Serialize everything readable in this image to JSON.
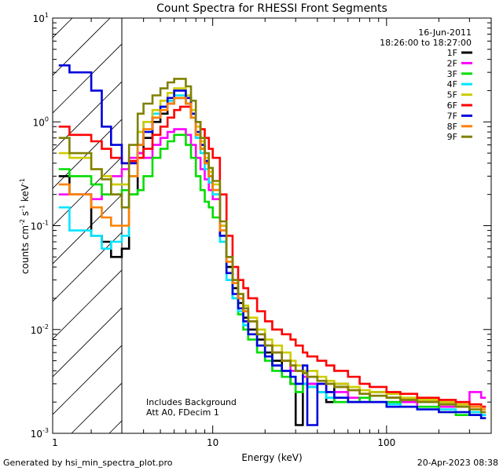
{
  "chart_data": {
    "type": "line",
    "title": "Count Spectra for RHESSI Front Segments",
    "xlabel": "Energy (keV)",
    "ylabel_main": "counts cm",
    "ylabel_sup1": "-2",
    "ylabel_mid1": " s",
    "ylabel_sup2": "-1",
    "ylabel_mid2": " keV",
    "ylabel_sup3": "-1",
    "x_scale": "log",
    "y_scale": "log",
    "xlim": [
      1.2,
      400
    ],
    "ylim": [
      0.001,
      10
    ],
    "x_tick_values": [
      10,
      100
    ],
    "x_tick_labels": [
      "10",
      "100"
    ],
    "y_ticks": [
      {
        "value": 0.001,
        "base": "10",
        "exp": "-3"
      },
      {
        "value": 0.01,
        "base": "10",
        "exp": "-2"
      },
      {
        "value": 0.1,
        "base": "10",
        "exp": "-1"
      },
      {
        "value": 1,
        "base": "10",
        "exp": "0"
      },
      {
        "value": 10,
        "base": "10",
        "exp": "1"
      }
    ],
    "x_one_label": "1",
    "date": "16-Jun-2011",
    "time_range": "18:26:00 to 18:27:00",
    "annotation1": "Includes Background",
    "annotation2": "Att A0, FDecim 1",
    "hatched_below_keV": 3,
    "series": [
      {
        "name": "1F",
        "color": "#000000",
        "x": [
          1.3,
          1.5,
          2.0,
          2.3,
          2.6,
          3.0,
          3.3,
          3.7,
          4.0,
          4.5,
          5.0,
          5.5,
          6.0,
          6.5,
          7.0,
          7.5,
          8.0,
          8.5,
          9.0,
          9.5,
          10,
          11,
          12,
          13,
          14,
          15,
          16,
          18,
          20,
          22,
          25,
          28,
          30,
          33,
          35,
          40,
          45,
          50,
          60,
          70,
          80,
          100,
          120,
          150,
          200,
          250,
          300,
          350
        ],
        "y": [
          0.3,
          0.2,
          0.08,
          0.07,
          0.05,
          0.06,
          0.2,
          0.5,
          0.7,
          1.0,
          1.2,
          1.5,
          1.7,
          1.7,
          1.5,
          1.1,
          0.7,
          0.55,
          0.4,
          0.3,
          0.2,
          0.08,
          0.04,
          0.025,
          0.018,
          0.013,
          0.01,
          0.008,
          0.006,
          0.005,
          0.004,
          0.003,
          0.0012,
          0.003,
          0.003,
          0.0025,
          0.002,
          0.003,
          0.002,
          0.002,
          0.0025,
          0.0022,
          0.002,
          0.002,
          0.0018,
          0.0018,
          0.0015,
          0.0015
        ]
      },
      {
        "name": "2F",
        "color": "#ff00ff",
        "x": [
          1.3,
          1.5,
          2.0,
          2.3,
          2.6,
          3.0,
          3.3,
          3.7,
          4.0,
          4.5,
          5.0,
          5.5,
          6.0,
          6.5,
          7.0,
          7.5,
          8.0,
          8.5,
          9.0,
          9.5,
          10,
          11,
          12,
          13,
          14,
          15,
          16,
          18,
          20,
          22,
          25,
          28,
          30,
          33,
          35,
          40,
          45,
          50,
          60,
          70,
          80,
          100,
          120,
          150,
          200,
          250,
          300,
          350
        ],
        "y": [
          0.2,
          0.2,
          0.18,
          0.2,
          0.3,
          0.35,
          0.45,
          0.5,
          0.45,
          0.6,
          0.7,
          0.8,
          0.85,
          0.85,
          0.75,
          0.6,
          0.45,
          0.35,
          0.28,
          0.22,
          0.18,
          0.1,
          0.05,
          0.03,
          0.02,
          0.015,
          0.012,
          0.009,
          0.007,
          0.006,
          0.005,
          0.004,
          0.004,
          0.0035,
          0.003,
          0.003,
          0.0025,
          0.0025,
          0.0022,
          0.002,
          0.002,
          0.002,
          0.002,
          0.0018,
          0.0018,
          0.002,
          0.0025,
          0.0022
        ]
      },
      {
        "name": "3F",
        "color": "#00dd00",
        "x": [
          1.3,
          1.5,
          2.0,
          2.3,
          2.6,
          3.0,
          3.3,
          3.7,
          4.0,
          4.5,
          5.0,
          5.5,
          6.0,
          6.5,
          7.0,
          7.5,
          8.0,
          8.5,
          9.0,
          9.5,
          10,
          11,
          12,
          13,
          14,
          15,
          16,
          18,
          20,
          22,
          25,
          28,
          30,
          33,
          35,
          40,
          45,
          50,
          60,
          70,
          80,
          100,
          120,
          150,
          200,
          250,
          300,
          350
        ],
        "y": [
          0.35,
          0.3,
          0.25,
          0.2,
          0.2,
          0.22,
          0.2,
          0.22,
          0.3,
          0.45,
          0.55,
          0.65,
          0.75,
          0.75,
          0.6,
          0.45,
          0.3,
          0.22,
          0.17,
          0.15,
          0.12,
          0.07,
          0.035,
          0.02,
          0.014,
          0.01,
          0.008,
          0.006,
          0.005,
          0.004,
          0.0035,
          0.003,
          0.0025,
          0.003,
          0.0028,
          0.0025,
          0.0022,
          0.002,
          0.002,
          0.0022,
          0.002,
          0.002,
          0.0018,
          0.0018,
          0.0016,
          0.0015,
          0.0015,
          0.0014
        ]
      },
      {
        "name": "4F",
        "color": "#00e5ff",
        "x": [
          1.3,
          1.5,
          2.0,
          2.3,
          2.6,
          3.0,
          3.3,
          3.7,
          4.0,
          4.5,
          5.0,
          5.5,
          6.0,
          6.5,
          7.0,
          7.5,
          8.0,
          8.5,
          9.0,
          9.5,
          10,
          11,
          12,
          13,
          14,
          15,
          16,
          18,
          20,
          22,
          25,
          28,
          30,
          33,
          35,
          40,
          45,
          50,
          60,
          70,
          80,
          100,
          120,
          150,
          200,
          250,
          300,
          350
        ],
        "y": [
          0.15,
          0.09,
          0.08,
          0.06,
          0.07,
          0.08,
          0.3,
          0.8,
          1.0,
          1.2,
          1.4,
          1.6,
          1.8,
          1.8,
          1.5,
          1.1,
          0.7,
          0.5,
          0.35,
          0.26,
          0.2,
          0.07,
          0.03,
          0.02,
          0.015,
          0.011,
          0.009,
          0.007,
          0.0055,
          0.0045,
          0.004,
          0.0035,
          0.003,
          0.003,
          0.0028,
          0.0025,
          0.0022,
          0.0022,
          0.002,
          0.002,
          0.002,
          0.0019,
          0.0018,
          0.0017,
          0.0017,
          0.0016,
          0.0016,
          0.0015
        ]
      },
      {
        "name": "5F",
        "color": "#cccc00",
        "x": [
          1.3,
          1.5,
          2.0,
          2.3,
          2.6,
          3.0,
          3.3,
          3.7,
          4.0,
          4.5,
          5.0,
          5.5,
          6.0,
          6.5,
          7.0,
          7.5,
          8.0,
          8.5,
          9.0,
          9.5,
          10,
          11,
          12,
          13,
          14,
          15,
          16,
          18,
          20,
          22,
          25,
          28,
          30,
          33,
          35,
          40,
          45,
          50,
          60,
          70,
          80,
          100,
          120,
          150,
          200,
          250,
          300,
          350
        ],
        "y": [
          0.5,
          0.45,
          0.35,
          0.3,
          0.25,
          0.25,
          0.4,
          0.8,
          1.0,
          1.3,
          1.6,
          1.9,
          2.1,
          2.1,
          1.8,
          1.3,
          0.9,
          0.65,
          0.45,
          0.33,
          0.25,
          0.1,
          0.05,
          0.03,
          0.022,
          0.017,
          0.013,
          0.01,
          0.008,
          0.007,
          0.006,
          0.005,
          0.0045,
          0.004,
          0.004,
          0.0035,
          0.0032,
          0.003,
          0.0028,
          0.0026,
          0.0025,
          0.0024,
          0.0022,
          0.0021,
          0.002,
          0.0019,
          0.0018,
          0.0018
        ]
      },
      {
        "name": "6F",
        "color": "#ff0000",
        "x": [
          1.3,
          1.5,
          2.0,
          2.3,
          2.6,
          3.0,
          3.3,
          3.7,
          4.0,
          4.5,
          5.0,
          5.5,
          6.0,
          6.5,
          7.0,
          7.5,
          8.0,
          8.5,
          9.0,
          9.5,
          10,
          11,
          12,
          13,
          14,
          15,
          16,
          18,
          20,
          22,
          25,
          28,
          30,
          33,
          35,
          40,
          45,
          50,
          60,
          70,
          80,
          100,
          120,
          150,
          200,
          250,
          300,
          350
        ],
        "y": [
          0.9,
          0.75,
          0.65,
          0.55,
          0.45,
          0.4,
          0.42,
          0.45,
          0.55,
          0.75,
          0.9,
          1.1,
          1.3,
          1.4,
          1.4,
          1.2,
          1.0,
          0.85,
          0.7,
          0.55,
          0.45,
          0.2,
          0.08,
          0.04,
          0.03,
          0.025,
          0.02,
          0.015,
          0.012,
          0.01,
          0.009,
          0.008,
          0.007,
          0.006,
          0.0055,
          0.005,
          0.0045,
          0.004,
          0.0035,
          0.003,
          0.0028,
          0.0025,
          0.0024,
          0.0022,
          0.0021,
          0.002,
          0.0019,
          0.0018
        ]
      },
      {
        "name": "7F",
        "color": "#0000dd",
        "x": [
          1.3,
          1.5,
          2.0,
          2.3,
          2.6,
          3.0,
          3.3,
          3.7,
          4.0,
          4.5,
          5.0,
          5.5,
          6.0,
          6.5,
          7.0,
          7.5,
          8.0,
          8.5,
          9.0,
          9.5,
          10,
          11,
          12,
          13,
          14,
          15,
          16,
          18,
          20,
          22,
          25,
          28,
          30,
          33,
          35,
          40,
          45,
          50,
          60,
          70,
          80,
          100,
          120,
          150,
          200,
          250,
          300,
          350
        ],
        "y": [
          3.5,
          3.0,
          2.0,
          0.9,
          0.6,
          0.4,
          0.4,
          0.6,
          0.8,
          1.1,
          1.4,
          1.7,
          2.0,
          2.0,
          1.7,
          1.2,
          0.8,
          0.6,
          0.42,
          0.3,
          0.22,
          0.08,
          0.035,
          0.022,
          0.016,
          0.012,
          0.009,
          0.007,
          0.0055,
          0.0045,
          0.004,
          0.0035,
          0.003,
          0.0045,
          0.0012,
          0.003,
          0.0025,
          0.0022,
          0.002,
          0.002,
          0.002,
          0.0018,
          0.0018,
          0.0017,
          0.0016,
          0.0016,
          0.0015,
          0.0014
        ]
      },
      {
        "name": "8F",
        "color": "#ff8000",
        "x": [
          1.3,
          1.5,
          2.0,
          2.3,
          2.6,
          3.0,
          3.3,
          3.7,
          4.0,
          4.5,
          5.0,
          5.5,
          6.0,
          6.5,
          7.0,
          7.5,
          8.0,
          8.5,
          9.0,
          9.5,
          10,
          11,
          12,
          13,
          14,
          15,
          16,
          18,
          20,
          22,
          25,
          28,
          30,
          33,
          35,
          40,
          45,
          50,
          60,
          70,
          80,
          100,
          120,
          150,
          200,
          250,
          300,
          350
        ],
        "y": [
          0.25,
          0.2,
          0.15,
          0.12,
          0.1,
          0.1,
          0.3,
          0.6,
          0.85,
          1.1,
          1.3,
          1.5,
          1.7,
          1.7,
          1.5,
          1.1,
          0.75,
          0.55,
          0.4,
          0.3,
          0.22,
          0.09,
          0.045,
          0.028,
          0.02,
          0.015,
          0.012,
          0.009,
          0.007,
          0.006,
          0.005,
          0.0045,
          0.004,
          0.0038,
          0.0035,
          0.0032,
          0.003,
          0.0028,
          0.0026,
          0.0024,
          0.0023,
          0.0022,
          0.0021,
          0.002,
          0.0019,
          0.0018,
          0.0018,
          0.0017
        ]
      },
      {
        "name": "9F",
        "color": "#808000",
        "x": [
          1.3,
          1.5,
          2.0,
          2.3,
          2.6,
          3.0,
          3.3,
          3.7,
          4.0,
          4.5,
          5.0,
          5.5,
          6.0,
          6.5,
          7.0,
          7.5,
          8.0,
          8.5,
          9.0,
          9.5,
          10,
          11,
          12,
          13,
          14,
          15,
          16,
          18,
          20,
          22,
          25,
          28,
          30,
          33,
          35,
          40,
          45,
          50,
          60,
          70,
          80,
          100,
          120,
          150,
          200,
          250,
          300,
          350
        ],
        "y": [
          0.7,
          0.5,
          0.35,
          0.28,
          0.2,
          0.15,
          0.6,
          1.2,
          1.5,
          1.8,
          2.1,
          2.4,
          2.6,
          2.6,
          2.2,
          1.6,
          1.0,
          0.7,
          0.5,
          0.36,
          0.27,
          0.11,
          0.05,
          0.03,
          0.022,
          0.016,
          0.012,
          0.009,
          0.007,
          0.006,
          0.005,
          0.0045,
          0.004,
          0.0038,
          0.0035,
          0.0032,
          0.003,
          0.0028,
          0.0026,
          0.0024,
          0.0023,
          0.0022,
          0.0021,
          0.002,
          0.0019,
          0.0018,
          0.0017,
          0.0016
        ]
      }
    ]
  },
  "footer": {
    "left": "Generated by hsi_min_spectra_plot.pro",
    "right": "20-Apr-2023 08:38"
  }
}
